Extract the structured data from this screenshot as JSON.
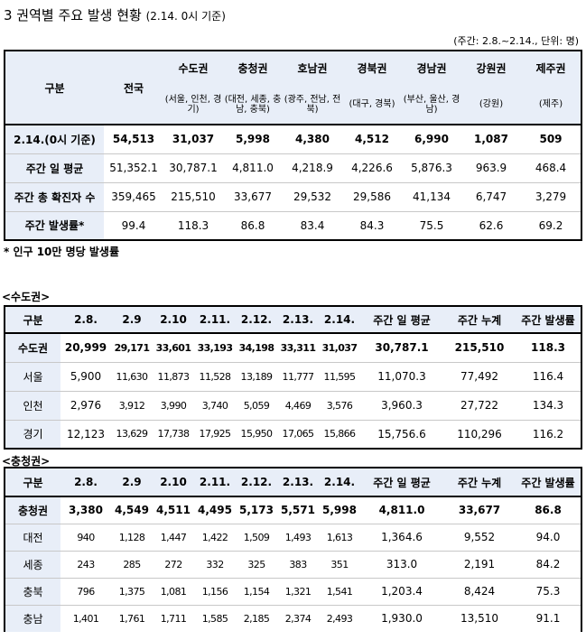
{
  "title": {
    "main": "3 권역별 주요 발생 현황",
    "sub": "(2.14. 0시 기준)"
  },
  "unit_note": "(주간: 2.8.~2.14., 단위: 명)",
  "regional": {
    "header_label": "구분",
    "header_total": "전국",
    "regions": [
      {
        "name": "수도권",
        "detail": "(서울, 인천, 경기)"
      },
      {
        "name": "충청권",
        "detail": "(대전, 세종, 충남, 충북)"
      },
      {
        "name": "호남권",
        "detail": "(광주, 전남, 전북)"
      },
      {
        "name": "경북권",
        "detail": "(대구, 경북)"
      },
      {
        "name": "경남권",
        "detail": "(부산, 울산, 경남)"
      },
      {
        "name": "강원권",
        "detail": "(강원)"
      },
      {
        "name": "제주권",
        "detail": "(제주)"
      }
    ],
    "rows": [
      {
        "label": "2.14.(0시 기준)",
        "values": [
          "54,513",
          "31,037",
          "5,998",
          "4,380",
          "4,512",
          "6,990",
          "1,087",
          "509"
        ]
      },
      {
        "label": "주간 일 평균",
        "values": [
          "51,352.1",
          "30,787.1",
          "4,811.0",
          "4,218.9",
          "4,226.6",
          "5,876.3",
          "963.9",
          "468.4"
        ]
      },
      {
        "label": "주간 총 확진자 수",
        "values": [
          "359,465",
          "215,510",
          "33,677",
          "29,532",
          "29,586",
          "41,134",
          "6,747",
          "3,279"
        ]
      },
      {
        "label": "주간 발생률*",
        "values": [
          "99.4",
          "118.3",
          "86.8",
          "83.4",
          "84.3",
          "75.5",
          "62.6",
          "69.2"
        ]
      }
    ]
  },
  "footnote": "* 인구 10만 명당 발생률",
  "capital": {
    "section_label": "<수도권>",
    "headers": [
      "구분",
      "2.8.",
      "2.9",
      "2.10",
      "2.11.",
      "2.12.",
      "2.13.",
      "2.14.",
      "주간 일 평균",
      "주간 누계",
      "주간 발생률"
    ],
    "rows": [
      [
        "수도권",
        "20,999",
        "29,171",
        "33,601",
        "33,193",
        "34,198",
        "33,311",
        "31,037",
        "30,787.1",
        "215,510",
        "118.3"
      ],
      [
        "서울",
        "5,900",
        "11,630",
        "11,873",
        "11,528",
        "13,189",
        "11,777",
        "11,595",
        "11,070.3",
        "77,492",
        "116.4"
      ],
      [
        "인천",
        "2,976",
        "3,912",
        "3,990",
        "3,740",
        "5,059",
        "4,469",
        "3,576",
        "3,960.3",
        "27,722",
        "134.3"
      ],
      [
        "경기",
        "12,123",
        "13,629",
        "17,738",
        "17,925",
        "15,950",
        "17,065",
        "15,866",
        "15,756.6",
        "110,296",
        "116.2"
      ]
    ]
  },
  "chungcheong": {
    "section_label": "<충청권>",
    "headers": [
      "구분",
      "2.8.",
      "2.9",
      "2.10",
      "2.11.",
      "2.12.",
      "2.13.",
      "2.14.",
      "주간 일 평균",
      "주간 누계",
      "주간 발생률"
    ],
    "rows": [
      [
        "충청권",
        "3,380",
        "4,549",
        "4,511",
        "4,495",
        "5,173",
        "5,571",
        "5,998",
        "4,811.0",
        "33,677",
        "86.8"
      ],
      [
        "대전",
        "940",
        "1,128",
        "1,447",
        "1,422",
        "1,509",
        "1,493",
        "1,613",
        "1,364.6",
        "9,552",
        "94.0"
      ],
      [
        "세종",
        "243",
        "285",
        "272",
        "332",
        "325",
        "383",
        "351",
        "313.0",
        "2,191",
        "84.2"
      ],
      [
        "충북",
        "796",
        "1,375",
        "1,081",
        "1,156",
        "1,154",
        "1,321",
        "1,541",
        "1,203.4",
        "8,424",
        "75.3"
      ],
      [
        "충남",
        "1,401",
        "1,761",
        "1,711",
        "1,585",
        "2,185",
        "2,374",
        "2,493",
        "1,930.0",
        "13,510",
        "91.1"
      ]
    ]
  }
}
